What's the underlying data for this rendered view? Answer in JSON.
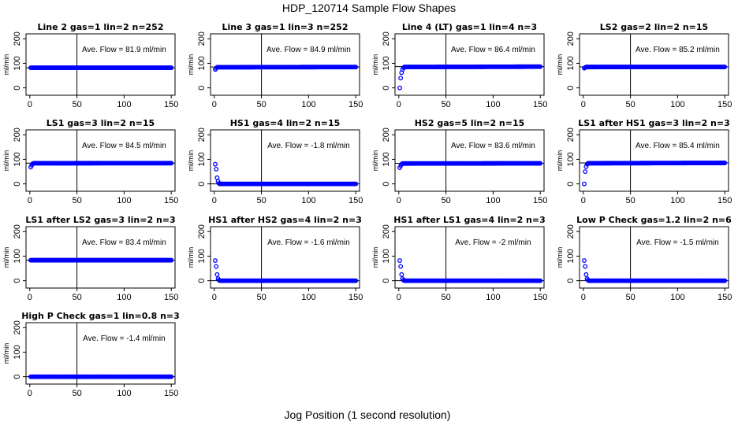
{
  "figure": {
    "title": "HDP_120714  Sample Flow Shapes",
    "xlabel": "Jog Position (1 second resolution)"
  },
  "style": {
    "point_color": "#0000ff",
    "line_color": "#000000"
  },
  "chart_data": [
    {
      "type": "scatter",
      "title": "Line 2 gas=1 lin=2 n=252",
      "annotation": "Ave. Flow =  81.9  ml/min",
      "ylabel": "ml/min",
      "xlim": [
        -4,
        154
      ],
      "ylim": [
        -30,
        220
      ],
      "xticks": [
        0,
        50,
        100,
        150
      ],
      "yticks": [
        0,
        100,
        200
      ],
      "vline_x": 50,
      "hline_y": 81.9,
      "series": [
        {
          "x": [
            1,
            150
          ],
          "y": [
            81.9,
            81.9
          ]
        }
      ]
    },
    {
      "type": "scatter",
      "title": "Line 3 gas=1 lin=3 n=252",
      "annotation": "Ave. Flow =  84.9  ml/min",
      "ylabel": "ml/min",
      "xlim": [
        -4,
        154
      ],
      "ylim": [
        -30,
        220
      ],
      "xticks": [
        0,
        50,
        100,
        150
      ],
      "yticks": [
        0,
        100,
        200
      ],
      "vline_x": 50,
      "hline_y": 84.9,
      "series": [
        {
          "x": [
            1,
            2,
            3,
            150
          ],
          "y": [
            75,
            80,
            84,
            84.9
          ]
        }
      ]
    },
    {
      "type": "scatter",
      "title": "Line 4 (LT) gas=1 lin=4 n=3",
      "annotation": "Ave. Flow =  86.4  ml/min",
      "ylabel": "ml/min",
      "xlim": [
        -4,
        154
      ],
      "ylim": [
        -30,
        220
      ],
      "xticks": [
        0,
        50,
        100,
        150
      ],
      "yticks": [
        0,
        100,
        200
      ],
      "vline_x": 50,
      "hline_y": 86.4,
      "series": [
        {
          "x": [
            1,
            2,
            3,
            4,
            5,
            6,
            150
          ],
          "y": [
            0,
            40,
            62,
            75,
            82,
            85,
            86.4
          ]
        }
      ]
    },
    {
      "type": "scatter",
      "title": "LS2 gas=2 lin=2 n=15",
      "annotation": "Ave. Flow =  85.2  ml/min",
      "ylabel": "ml/min",
      "xlim": [
        -4,
        154
      ],
      "ylim": [
        -30,
        220
      ],
      "xticks": [
        0,
        50,
        100,
        150
      ],
      "yticks": [
        0,
        100,
        200
      ],
      "vline_x": 50,
      "hline_y": 85.2,
      "series": [
        {
          "x": [
            1,
            2,
            3,
            150
          ],
          "y": [
            80,
            83,
            85,
            85.2
          ]
        }
      ]
    },
    {
      "type": "scatter",
      "title": "LS1 gas=3 lin=2 n=15",
      "annotation": "Ave. Flow =  84.5  ml/min",
      "ylabel": "ml/min",
      "xlim": [
        -4,
        154
      ],
      "ylim": [
        -30,
        220
      ],
      "xticks": [
        0,
        50,
        100,
        150
      ],
      "yticks": [
        0,
        100,
        200
      ],
      "vline_x": 50,
      "hline_y": 84.5,
      "series": [
        {
          "x": [
            1,
            2,
            3,
            4,
            150
          ],
          "y": [
            68,
            76,
            82,
            84,
            84.5
          ]
        }
      ]
    },
    {
      "type": "scatter",
      "title": "HS1 gas=4 lin=2 n=15",
      "annotation": "Ave. Flow =  -1.8  ml/min",
      "ylabel": "ml/min",
      "xlim": [
        -4,
        154
      ],
      "ylim": [
        -30,
        220
      ],
      "xticks": [
        0,
        50,
        100,
        150
      ],
      "yticks": [
        0,
        100,
        200
      ],
      "vline_x": 50,
      "hline_y": 0,
      "series": [
        {
          "x": [
            1,
            2,
            3,
            4,
            5,
            6,
            7,
            150
          ],
          "y": [
            80,
            60,
            25,
            10,
            2,
            0,
            0,
            0
          ]
        }
      ]
    },
    {
      "type": "scatter",
      "title": "HS2 gas=5 lin=2 n=15",
      "annotation": "Ave. Flow =  83.6  ml/min",
      "ylabel": "ml/min",
      "xlim": [
        -4,
        154
      ],
      "ylim": [
        -30,
        220
      ],
      "xticks": [
        0,
        50,
        100,
        150
      ],
      "yticks": [
        0,
        100,
        200
      ],
      "vline_x": 50,
      "hline_y": 83.6,
      "series": [
        {
          "x": [
            1,
            2,
            3,
            4,
            150
          ],
          "y": [
            66,
            74,
            80,
            83,
            83.6
          ]
        }
      ]
    },
    {
      "type": "scatter",
      "title": "LS1 after HS1 gas=3 lin=2 n=3",
      "annotation": "Ave. Flow =  85.4  ml/min",
      "ylabel": "ml/min",
      "xlim": [
        -4,
        154
      ],
      "ylim": [
        -30,
        220
      ],
      "xticks": [
        0,
        50,
        100,
        150
      ],
      "yticks": [
        0,
        100,
        200
      ],
      "vline_x": 50,
      "hline_y": 85.4,
      "series": [
        {
          "x": [
            1,
            2,
            3,
            4,
            5,
            150
          ],
          "y": [
            0,
            50,
            70,
            80,
            84,
            85.4
          ]
        }
      ]
    },
    {
      "type": "scatter",
      "title": "LS1 after LS2 gas=3 lin=2 n=3",
      "annotation": "Ave. Flow =  83.4  ml/min",
      "ylabel": "ml/min",
      "xlim": [
        -4,
        154
      ],
      "ylim": [
        -30,
        220
      ],
      "xticks": [
        0,
        50,
        100,
        150
      ],
      "yticks": [
        0,
        100,
        200
      ],
      "vline_x": 50,
      "hline_y": 83.4,
      "series": [
        {
          "x": [
            1,
            150
          ],
          "y": [
            83.4,
            83.4
          ]
        }
      ]
    },
    {
      "type": "scatter",
      "title": "HS1 after HS2 gas=4 lin=2 n=3",
      "annotation": "Ave. Flow =  -1.6  ml/min",
      "ylabel": "ml/min",
      "xlim": [
        -4,
        154
      ],
      "ylim": [
        -30,
        220
      ],
      "xticks": [
        0,
        50,
        100,
        150
      ],
      "yticks": [
        0,
        100,
        200
      ],
      "vline_x": 50,
      "hline_y": 0,
      "series": [
        {
          "x": [
            1,
            2,
            3,
            4,
            5,
            6,
            150
          ],
          "y": [
            82,
            58,
            25,
            8,
            2,
            0,
            0
          ]
        }
      ]
    },
    {
      "type": "scatter",
      "title": "HS1 after LS1 gas=4 lin=2 n=3",
      "annotation": "Ave. Flow =  -2  ml/min",
      "ylabel": "ml/min",
      "xlim": [
        -4,
        154
      ],
      "ylim": [
        -30,
        220
      ],
      "xticks": [
        0,
        50,
        100,
        150
      ],
      "yticks": [
        0,
        100,
        200
      ],
      "vline_x": 50,
      "hline_y": 0,
      "series": [
        {
          "x": [
            1,
            2,
            3,
            4,
            5,
            6,
            150
          ],
          "y": [
            82,
            58,
            25,
            8,
            2,
            0,
            0
          ]
        }
      ]
    },
    {
      "type": "scatter",
      "title": "Low P Check gas=1.2 lin=2 n=6",
      "annotation": "Ave. Flow =  -1.5  ml/min",
      "ylabel": "ml/min",
      "xlim": [
        -4,
        154
      ],
      "ylim": [
        -30,
        220
      ],
      "xticks": [
        0,
        50,
        100,
        150
      ],
      "yticks": [
        0,
        100,
        200
      ],
      "vline_x": 50,
      "hline_y": 0,
      "series": [
        {
          "x": [
            1,
            2,
            3,
            4,
            5,
            6,
            150
          ],
          "y": [
            82,
            58,
            25,
            8,
            2,
            0,
            0
          ]
        }
      ]
    },
    {
      "type": "scatter",
      "title": "High P Check gas=1 lin=0.8 n=3",
      "annotation": "Ave. Flow =  -1.4  ml/min",
      "ylabel": "ml/min",
      "xlim": [
        -4,
        154
      ],
      "ylim": [
        -30,
        220
      ],
      "xticks": [
        0,
        50,
        100,
        150
      ],
      "yticks": [
        0,
        100,
        200
      ],
      "vline_x": 50,
      "hline_y": 0,
      "series": [
        {
          "x": [
            1,
            150
          ],
          "y": [
            0,
            0
          ]
        }
      ]
    }
  ]
}
